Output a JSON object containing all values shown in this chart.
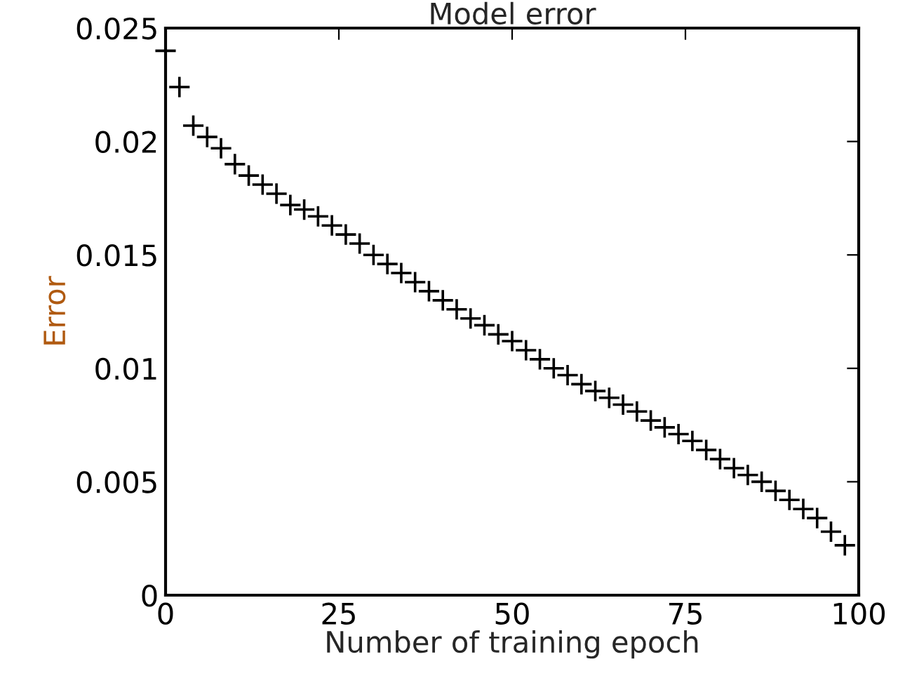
{
  "chart_data": {
    "type": "scatter",
    "title": "Model error",
    "xlabel": "Number of training epoch",
    "ylabel": "Error",
    "x": [
      0,
      2,
      4,
      6,
      8,
      10,
      12,
      14,
      16,
      18,
      20,
      22,
      24,
      26,
      28,
      30,
      32,
      34,
      36,
      38,
      40,
      42,
      44,
      46,
      48,
      50,
      52,
      54,
      56,
      58,
      60,
      62,
      64,
      66,
      68,
      70,
      72,
      74,
      76,
      78,
      80,
      82,
      84,
      86,
      88,
      90,
      92,
      94,
      96,
      98
    ],
    "series": [
      {
        "color": "#000000",
        "values": [
          0.024,
          0.0224,
          0.0207,
          0.0202,
          0.0197,
          0.019,
          0.0185,
          0.0181,
          0.0177,
          0.0172,
          0.017,
          0.0167,
          0.0163,
          0.0159,
          0.0155,
          0.015,
          0.0146,
          0.0142,
          0.0138,
          0.0134,
          0.013,
          0.0126,
          0.0122,
          0.0119,
          0.0115,
          0.0112,
          0.0108,
          0.0104,
          0.01,
          0.0097,
          0.0093,
          0.009,
          0.0087,
          0.0084,
          0.0081,
          0.0077,
          0.0074,
          0.0071,
          0.0068,
          0.0064,
          0.006,
          0.0056,
          0.0053,
          0.005,
          0.0046,
          0.0042,
          0.0038,
          0.0034,
          0.0028,
          0.0022
        ]
      }
    ],
    "marker": "cross",
    "grid": false,
    "legend": false,
    "xlim": [
      0,
      100
    ],
    "xticks": [
      0,
      25,
      50,
      75,
      100
    ],
    "ylim": [
      0,
      0.025
    ],
    "yticks": [
      {
        "value": 0,
        "label": "0"
      },
      0.005,
      0.01,
      0.015,
      0.02,
      0.025
    ]
  }
}
